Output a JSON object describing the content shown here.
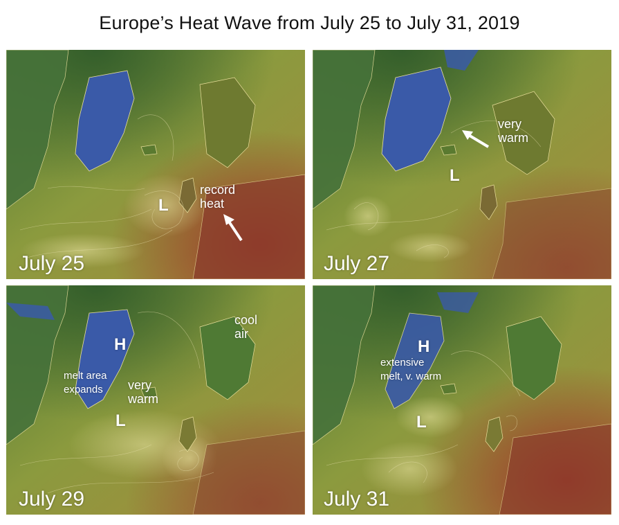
{
  "title": "Europe’s Heat Wave from July 25 to July 31, 2019",
  "panels": [
    {
      "date": "July 25",
      "annotations": {
        "low": "L",
        "note_line1": "record",
        "note_line2": "heat"
      }
    },
    {
      "date": "July 27",
      "annotations": {
        "low": "L",
        "note_line1": "very",
        "note_line2": "warm"
      }
    },
    {
      "date": "July 29",
      "annotations": {
        "high": "H",
        "low": "L",
        "cool_line1": "cool",
        "cool_line2": "air",
        "melt_line1": "melt area",
        "melt_line2": "expands",
        "warm_line1": "very",
        "warm_line2": "warm"
      }
    },
    {
      "date": "July 31",
      "annotations": {
        "high": "H",
        "low": "L",
        "note_line1": "extensive",
        "note_line2": "melt, v. warm"
      }
    }
  ],
  "colors": {
    "greenland_ice": "#3a5aa8",
    "land_green": "#3f6b2a",
    "ocean_olive": "#8a9a3c",
    "heat_red": "#9a3a2a",
    "coastline": "#f0e6a0",
    "label": "#ffffff"
  }
}
